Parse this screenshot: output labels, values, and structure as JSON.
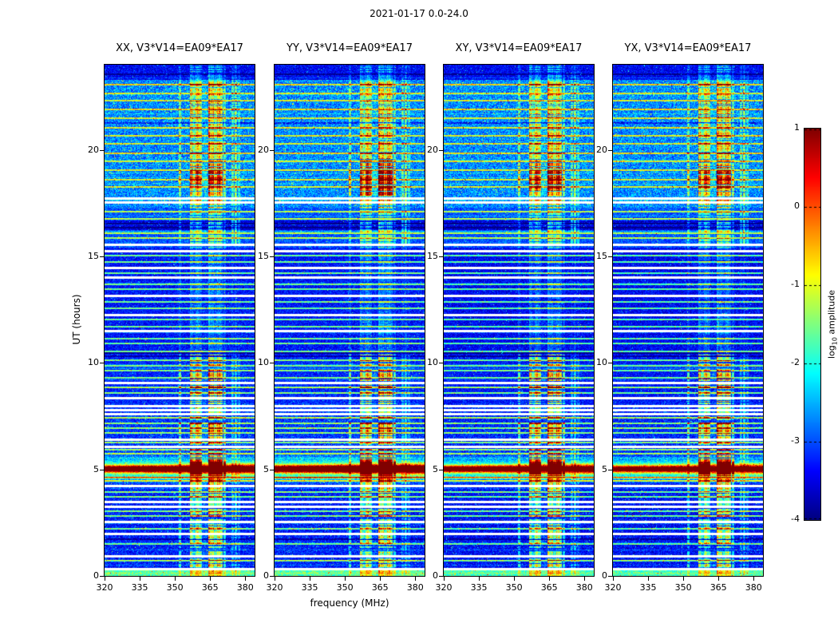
{
  "chart_data": {
    "type": "heatmap",
    "title": "2021-01-17 0.0-24.0",
    "xlabel": "frequency (MHz)",
    "ylabel": "UT (hours)",
    "colormap": "jet",
    "x_range": [
      320,
      384
    ],
    "x_ticks": [
      320,
      335,
      350,
      365,
      380
    ],
    "y_range": [
      0,
      24
    ],
    "y_ticks": [
      0,
      5,
      10,
      15,
      20
    ],
    "value_range": [
      -4,
      1
    ],
    "colorbar_ticks": [
      1,
      0,
      -1,
      -2,
      -3,
      -4
    ],
    "colorbar": {
      "label_prefix": "log",
      "label_sub": "10",
      "label_suffix": " amplitude",
      "label_full": "log10 amplitude"
    },
    "panels": [
      {
        "label": "XX",
        "title": "XX, V3*V14=EA09*EA17",
        "seed": 11,
        "burst_gain": 1.0,
        "low_adj": 0,
        "blob": [
          18.3,
          19.35,
          0.4
        ],
        "blob2": [
          21.75,
          22.35,
          0.3
        ]
      },
      {
        "label": "YY",
        "title": "YY, V3*V14=EA09*EA17",
        "seed": 23,
        "burst_gain": 1.12,
        "low_adj": 0,
        "blob": [
          17.85,
          19.6,
          0.6
        ],
        "blob2": null
      },
      {
        "label": "XY",
        "title": "XY, V3*V14=EA09*EA17",
        "seed": 37,
        "burst_gain": 0.95,
        "low_adj": -0.1,
        "blob": [
          18.05,
          19.4,
          0.45
        ],
        "blob2": null
      },
      {
        "label": "YX",
        "title": "YX, V3*V14=EA09*EA17",
        "seed": 49,
        "burst_gain": 0.92,
        "low_adj": -0.1,
        "blob": [
          18.2,
          19.3,
          0.4
        ],
        "blob2": [
          21.8,
          22.25,
          0.25
        ]
      }
    ],
    "features": {
      "background_level": -3.2,
      "rfi_band_mhz": [
        356.5,
        372
      ],
      "rfi_band_channels": [
        [
          356.9,
          0.6,
          1.0
        ],
        [
          358.2,
          0.6,
          0.65
        ],
        [
          359.5,
          0.6,
          1.2
        ],
        [
          360.8,
          0.6,
          0.85
        ],
        [
          362.1,
          0.65,
          0.15
        ],
        [
          363.4,
          0.65,
          0.2
        ],
        [
          364.7,
          0.6,
          1.25
        ],
        [
          366.0,
          0.6,
          1.1
        ],
        [
          367.3,
          0.6,
          0.75
        ],
        [
          368.6,
          0.6,
          1.15
        ],
        [
          369.9,
          0.6,
          0.9
        ],
        [
          371.2,
          0.6,
          0.6
        ]
      ],
      "secondary_band_channels": [
        [
          374.6,
          0.55,
          0.6
        ],
        [
          376.0,
          0.55,
          0.85
        ],
        [
          377.4,
          0.5,
          0.55
        ]
      ],
      "narrow_line_mhz": 352.3,
      "solar_burst": {
        "ut_center": 5.02,
        "peak_level": 1.0,
        "thin_line_ut": 4.62
      },
      "band_envelope": [
        [
          0,
          0.4,
          0.55
        ],
        [
          0.4,
          4.4,
          1.0
        ],
        [
          4.4,
          5.6,
          1.25
        ],
        [
          5.6,
          6.55,
          1.0
        ],
        [
          6.55,
          7.2,
          1.35
        ],
        [
          7.2,
          8.1,
          1.0
        ],
        [
          8.1,
          8.75,
          1.1
        ],
        [
          8.75,
          9.0,
          1.5
        ],
        [
          9.0,
          9.25,
          1.1
        ],
        [
          9.25,
          9.55,
          1.55
        ],
        [
          9.55,
          10.4,
          1.1
        ],
        [
          10.4,
          15.4,
          0.3
        ],
        [
          15.4,
          17.3,
          0.75
        ],
        [
          17.3,
          20.1,
          1.0
        ],
        [
          20.1,
          23.2,
          0.9
        ],
        [
          23.2,
          24.01,
          0.45
        ]
      ],
      "white_rows_ut": [
        0.34,
        0.94,
        1.99,
        2.55,
        3.26,
        3.49,
        4.24,
        6.08,
        6.41,
        7.62,
        7.8,
        7.97,
        8.36,
        9.08,
        11.51,
        12.26,
        13.16,
        14.03,
        14.48,
        15.26,
        15.56,
        17.55,
        17.74
      ],
      "cyan_rows_ut": [
        0.7,
        1.5,
        2.2,
        2.8,
        3.05,
        3.7,
        3.95,
        4.45,
        5.72,
        5.92,
        6.25,
        6.7,
        6.95,
        7.18,
        7.42,
        8.6,
        8.85,
        9.3,
        9.62,
        9.85,
        10.12,
        10.55,
        10.9,
        11.15,
        11.7,
        12.05,
        12.55,
        12.85,
        13.45,
        13.7,
        14.2,
        14.75,
        15.05,
        15.85,
        16.1,
        16.75,
        17.1,
        18.25,
        18.6,
        19.05,
        19.45,
        19.85,
        20.3,
        20.65,
        21.05,
        21.5,
        21.9,
        22.3,
        22.65,
        23.05
      ],
      "dark_rows_ut": [
        1.72,
        10.33,
        10.48,
        16.35,
        16.55,
        21.28,
        23.55
      ]
    }
  }
}
